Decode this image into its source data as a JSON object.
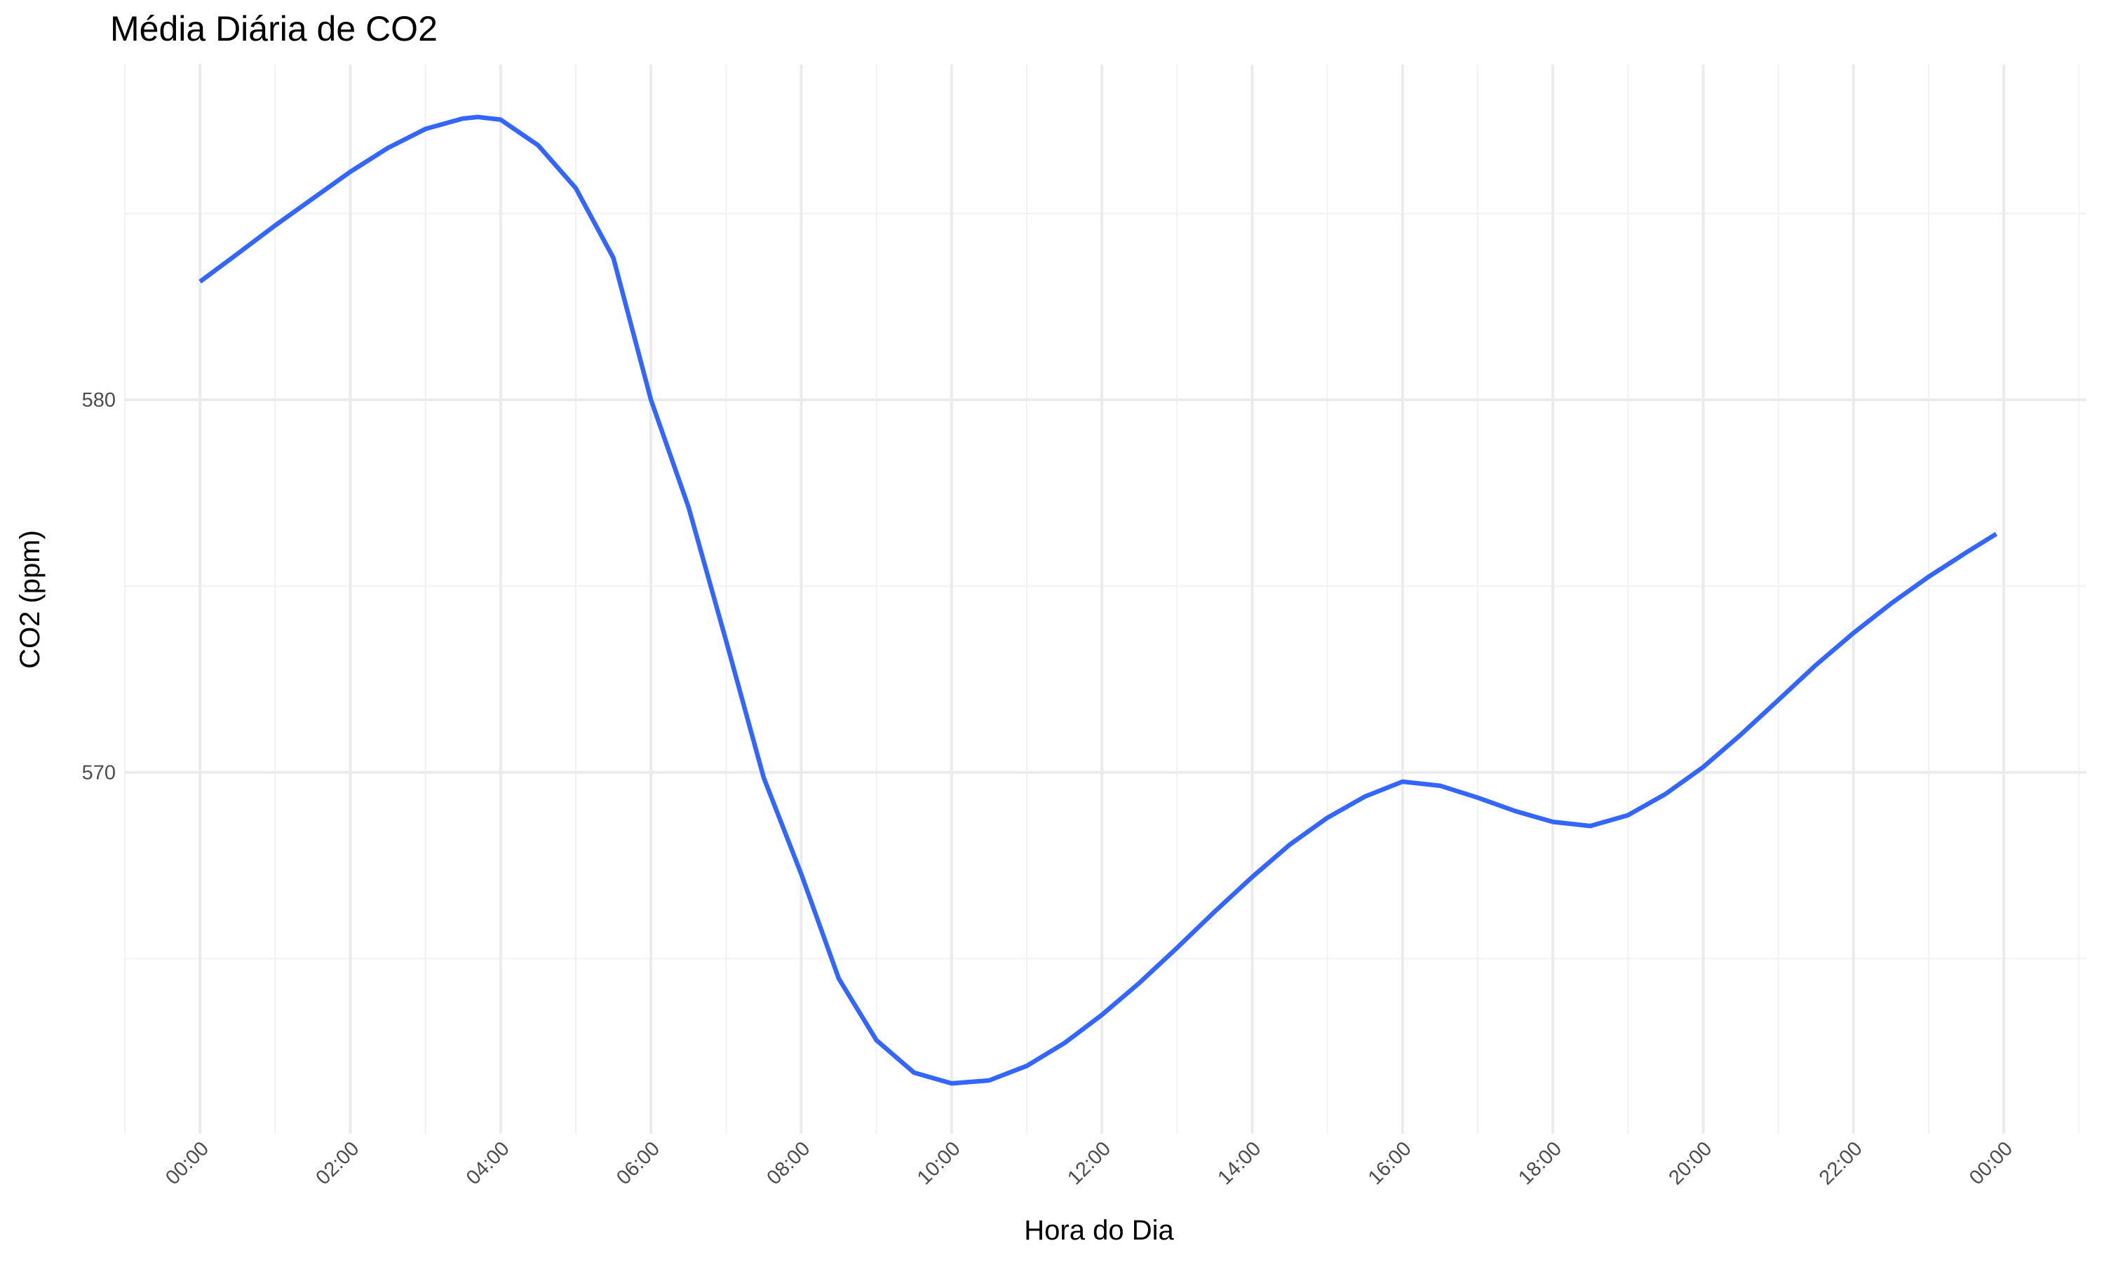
{
  "chart_data": {
    "type": "line",
    "title": "Média Diária de CO2",
    "x_label": "Hora do Dia",
    "y_label": "CO2 (ppm)",
    "x": [
      0,
      0.5,
      1,
      1.5,
      2,
      2.5,
      3,
      3.5,
      3.7,
      4,
      4.5,
      5,
      5.5,
      6,
      6.5,
      7,
      7.5,
      8,
      8.5,
      9,
      9.5,
      10,
      10.5,
      11,
      11.5,
      12,
      12.5,
      13,
      13.5,
      14,
      14.5,
      15,
      15.5,
      16,
      16.5,
      17,
      17.5,
      18,
      18.5,
      19,
      19.5,
      20,
      20.5,
      21,
      21.5,
      22,
      22.5,
      23,
      23.5,
      23.9
    ],
    "series": [
      {
        "name": "CO2",
        "color": "#3366ff",
        "values": [
          583.17,
          583.92,
          584.68,
          585.4,
          586.12,
          586.76,
          587.27,
          587.55,
          587.59,
          587.52,
          586.83,
          585.68,
          583.81,
          580.0,
          577.12,
          573.53,
          569.86,
          567.27,
          564.46,
          562.81,
          561.94,
          561.65,
          561.73,
          562.12,
          562.73,
          563.49,
          564.35,
          565.29,
          566.26,
          567.19,
          568.06,
          568.78,
          569.35,
          569.75,
          569.64,
          569.32,
          568.96,
          568.67,
          568.56,
          568.85,
          569.42,
          570.14,
          571.01,
          571.94,
          572.88,
          573.74,
          574.53,
          575.25,
          575.9,
          576.4
        ]
      }
    ],
    "xlim": [
      -1.0,
      25.1
    ],
    "xticks": [
      {
        "value": 0,
        "label": "00:00"
      },
      {
        "value": 2,
        "label": "02:00"
      },
      {
        "value": 4,
        "label": "04:00"
      },
      {
        "value": 6,
        "label": "06:00"
      },
      {
        "value": 8,
        "label": "08:00"
      },
      {
        "value": 10,
        "label": "10:00"
      },
      {
        "value": 12,
        "label": "12:00"
      },
      {
        "value": 14,
        "label": "14:00"
      },
      {
        "value": 16,
        "label": "16:00"
      },
      {
        "value": 18,
        "label": "18:00"
      },
      {
        "value": 20,
        "label": "20:00"
      },
      {
        "value": 22,
        "label": "22:00"
      },
      {
        "value": 24,
        "label": "00:00"
      }
    ],
    "ylim": [
      560.3,
      589.0
    ],
    "yticks": [
      570,
      580
    ],
    "grid": true
  }
}
